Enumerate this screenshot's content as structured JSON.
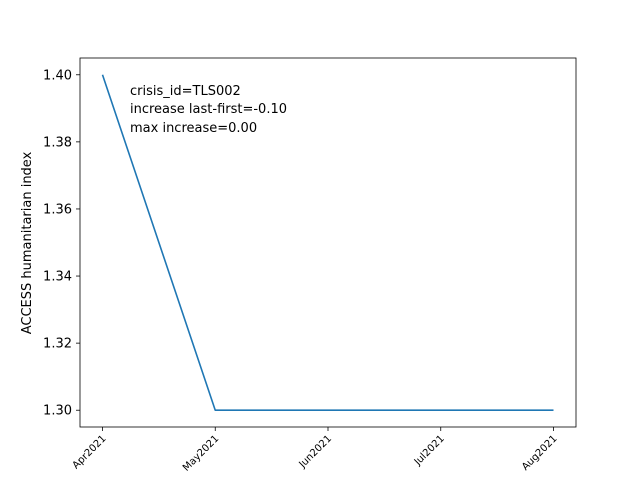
{
  "chart_data": {
    "type": "line",
    "title": "",
    "xlabel": "",
    "ylabel": "ACCESS humanitarian index",
    "categories": [
      "Apr2021",
      "May2021",
      "Jun2021",
      "Jul2021",
      "Aug2021"
    ],
    "x": [
      "Apr2021",
      "May2021",
      "Jun2021",
      "Jul2021",
      "Aug2021"
    ],
    "series": [
      {
        "values": [
          1.4,
          1.3,
          1.3,
          1.3,
          1.3
        ],
        "color": "#1f77b4"
      }
    ],
    "ylim": [
      1.295,
      1.405
    ],
    "yticks": [
      1.3,
      1.32,
      1.34,
      1.36,
      1.38,
      1.4
    ],
    "ytick_labels": [
      "1.30",
      "1.32",
      "1.34",
      "1.36",
      "1.38",
      "1.40"
    ],
    "grid": false,
    "annotations": [
      "crisis_id=TLS002",
      "increase last-first=-0.10",
      "max increase=0.00"
    ]
  }
}
